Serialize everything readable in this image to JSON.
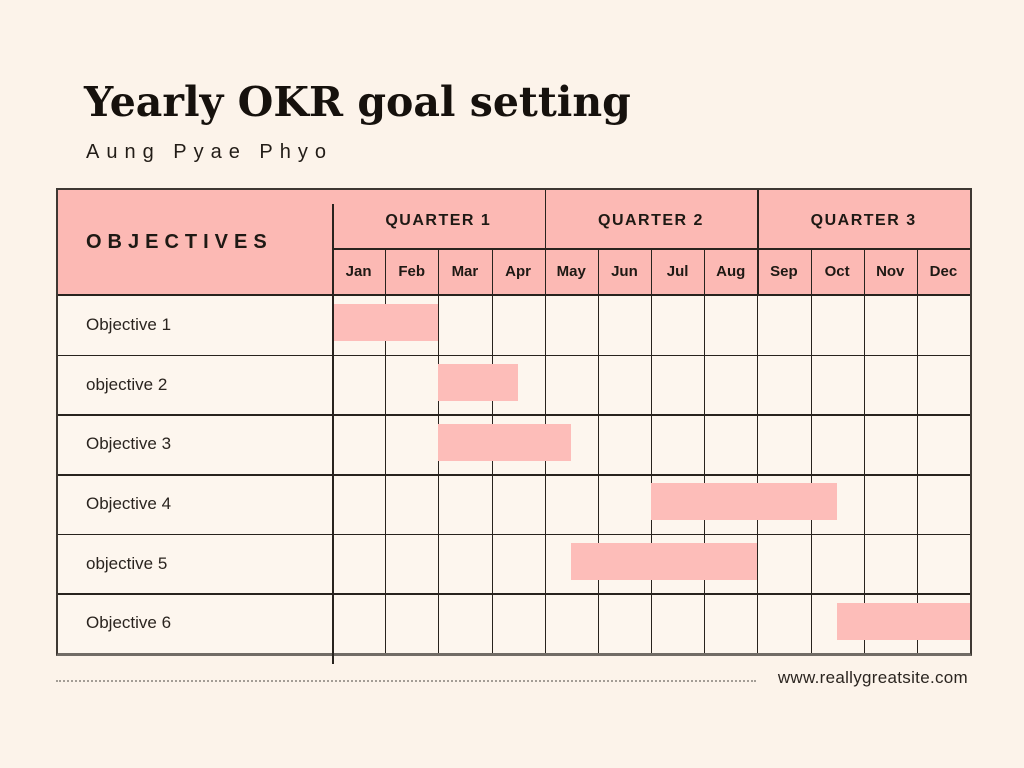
{
  "page": {
    "title": "Yearly OKR goal setting",
    "subtitle": "Aung Pyae Phyo",
    "footer_url": "www.reallygreatsite.com"
  },
  "colors": {
    "background": "#fcf3ea",
    "header_pink": "#fcb9b4",
    "bar_pink": "#fdbdb9",
    "grid_line": "#28231e",
    "outer_border": "#3e3833",
    "text_dark": "#1e1914"
  },
  "chart_data": {
    "type": "bar",
    "subtype": "gantt",
    "title": "Yearly OKR goal setting",
    "owner": "Aung Pyae Phyo",
    "corner_label": "OBJECTIVES",
    "legend_position": "none",
    "grid": true,
    "x_axis": {
      "unit": "months",
      "range": [
        0,
        12
      ],
      "tick_labels": [
        "Jan",
        "Feb",
        "Mar",
        "Apr",
        "May",
        "Jun",
        "Jul",
        "Aug",
        "Sep",
        "Oct",
        "Nov",
        "Dec"
      ]
    },
    "quarters": [
      {
        "label": "QUARTER 1",
        "months": [
          "Jan",
          "Feb",
          "Mar",
          "Apr"
        ]
      },
      {
        "label": "QUARTER 2",
        "months": [
          "May",
          "Jun",
          "Jul",
          "Aug"
        ]
      },
      {
        "label": "QUARTER 3",
        "months": [
          "Sep",
          "Oct",
          "Nov",
          "Dec"
        ]
      }
    ],
    "rows": [
      {
        "label": "Objective 1",
        "bar_start": 0,
        "bar_end": 2,
        "span": "Jan to end of Feb"
      },
      {
        "label": "objective 2",
        "bar_start": 2,
        "bar_end": 3.5,
        "span": "Mar to mid Apr"
      },
      {
        "label": "Objective 3",
        "bar_start": 2,
        "bar_end": 4.5,
        "span": "Mar to mid May"
      },
      {
        "label": "Objective 4",
        "bar_start": 6,
        "bar_end": 9.5,
        "span": "Jul to mid Oct"
      },
      {
        "label": "objective 5",
        "bar_start": 4.5,
        "bar_end": 8,
        "span": "mid May to end of Aug"
      },
      {
        "label": "Objective 6",
        "bar_start": 9.5,
        "bar_end": 12,
        "span": "mid Oct to end of Dec"
      }
    ]
  }
}
